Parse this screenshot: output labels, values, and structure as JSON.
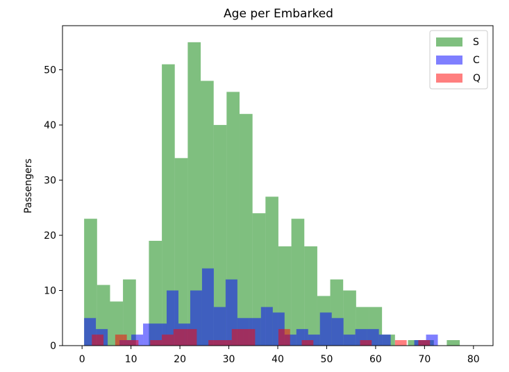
{
  "chart_data": {
    "type": "histogram",
    "title": "Age per Embarked",
    "xlabel": "",
    "ylabel": "Passengers",
    "xlim": [
      -4,
      84
    ],
    "ylim": [
      0,
      58
    ],
    "xticks": [
      0,
      10,
      20,
      30,
      40,
      50,
      60,
      70,
      80
    ],
    "yticks": [
      0,
      10,
      20,
      30,
      40,
      50
    ],
    "grid": false,
    "legend_position": "top-right",
    "series": [
      {
        "name": "S",
        "color": "#008000",
        "opacity": 0.5,
        "bin_edges": [
          0.42,
          3.07,
          5.72,
          8.36,
          11.01,
          13.66,
          16.31,
          18.95,
          21.6,
          24.25,
          26.9,
          29.54,
          32.19,
          34.84,
          37.49,
          40.13,
          42.78,
          45.43,
          48.08,
          50.72,
          53.37,
          56.02,
          58.67,
          61.31,
          63.96,
          66.61,
          69.26,
          71.9,
          74.55,
          77.2,
          79.85
        ],
        "counts": [
          23,
          11,
          8,
          12,
          0,
          19,
          51,
          34,
          55,
          48,
          40,
          46,
          42,
          24,
          27,
          18,
          23,
          18,
          9,
          12,
          10,
          7,
          7,
          2,
          0,
          1,
          1,
          0,
          1,
          0
        ]
      },
      {
        "name": "C",
        "color": "#0000ff",
        "opacity": 0.5,
        "bin_edges": [
          0.42,
          2.83,
          5.24,
          7.65,
          10.06,
          12.47,
          14.88,
          17.29,
          19.7,
          22.11,
          24.52,
          26.93,
          29.34,
          31.75,
          34.16,
          36.57,
          38.98,
          41.39,
          43.8,
          46.21,
          48.62,
          51.03,
          53.44,
          55.85,
          58.26,
          60.67,
          63.08,
          65.49,
          67.9,
          70.31,
          72.72,
          75.13
        ],
        "counts": [
          5,
          3,
          0,
          1,
          2,
          4,
          4,
          10,
          4,
          10,
          14,
          7,
          12,
          5,
          5,
          7,
          6,
          2,
          3,
          2,
          6,
          5,
          2,
          3,
          3,
          2,
          0,
          0,
          1,
          2,
          0
        ]
      },
      {
        "name": "Q",
        "color": "#ff0000",
        "opacity": 0.5,
        "bin_edges": [
          2.0,
          4.38,
          6.77,
          9.15,
          11.53,
          13.92,
          16.3,
          18.68,
          21.07,
          23.45,
          25.83,
          28.22,
          30.6,
          32.98,
          35.37,
          37.75,
          40.13,
          42.52,
          44.9,
          47.28,
          49.67,
          52.05,
          54.43,
          56.82,
          59.2,
          61.58,
          63.97,
          66.35,
          68.73,
          71.12,
          73.5
        ],
        "counts": [
          2,
          0,
          2,
          1,
          0,
          1,
          2,
          3,
          3,
          0,
          1,
          1,
          3,
          3,
          0,
          0,
          3,
          0,
          1,
          0,
          0,
          0,
          0,
          1,
          0,
          0,
          1,
          0,
          1,
          0
        ]
      }
    ]
  }
}
